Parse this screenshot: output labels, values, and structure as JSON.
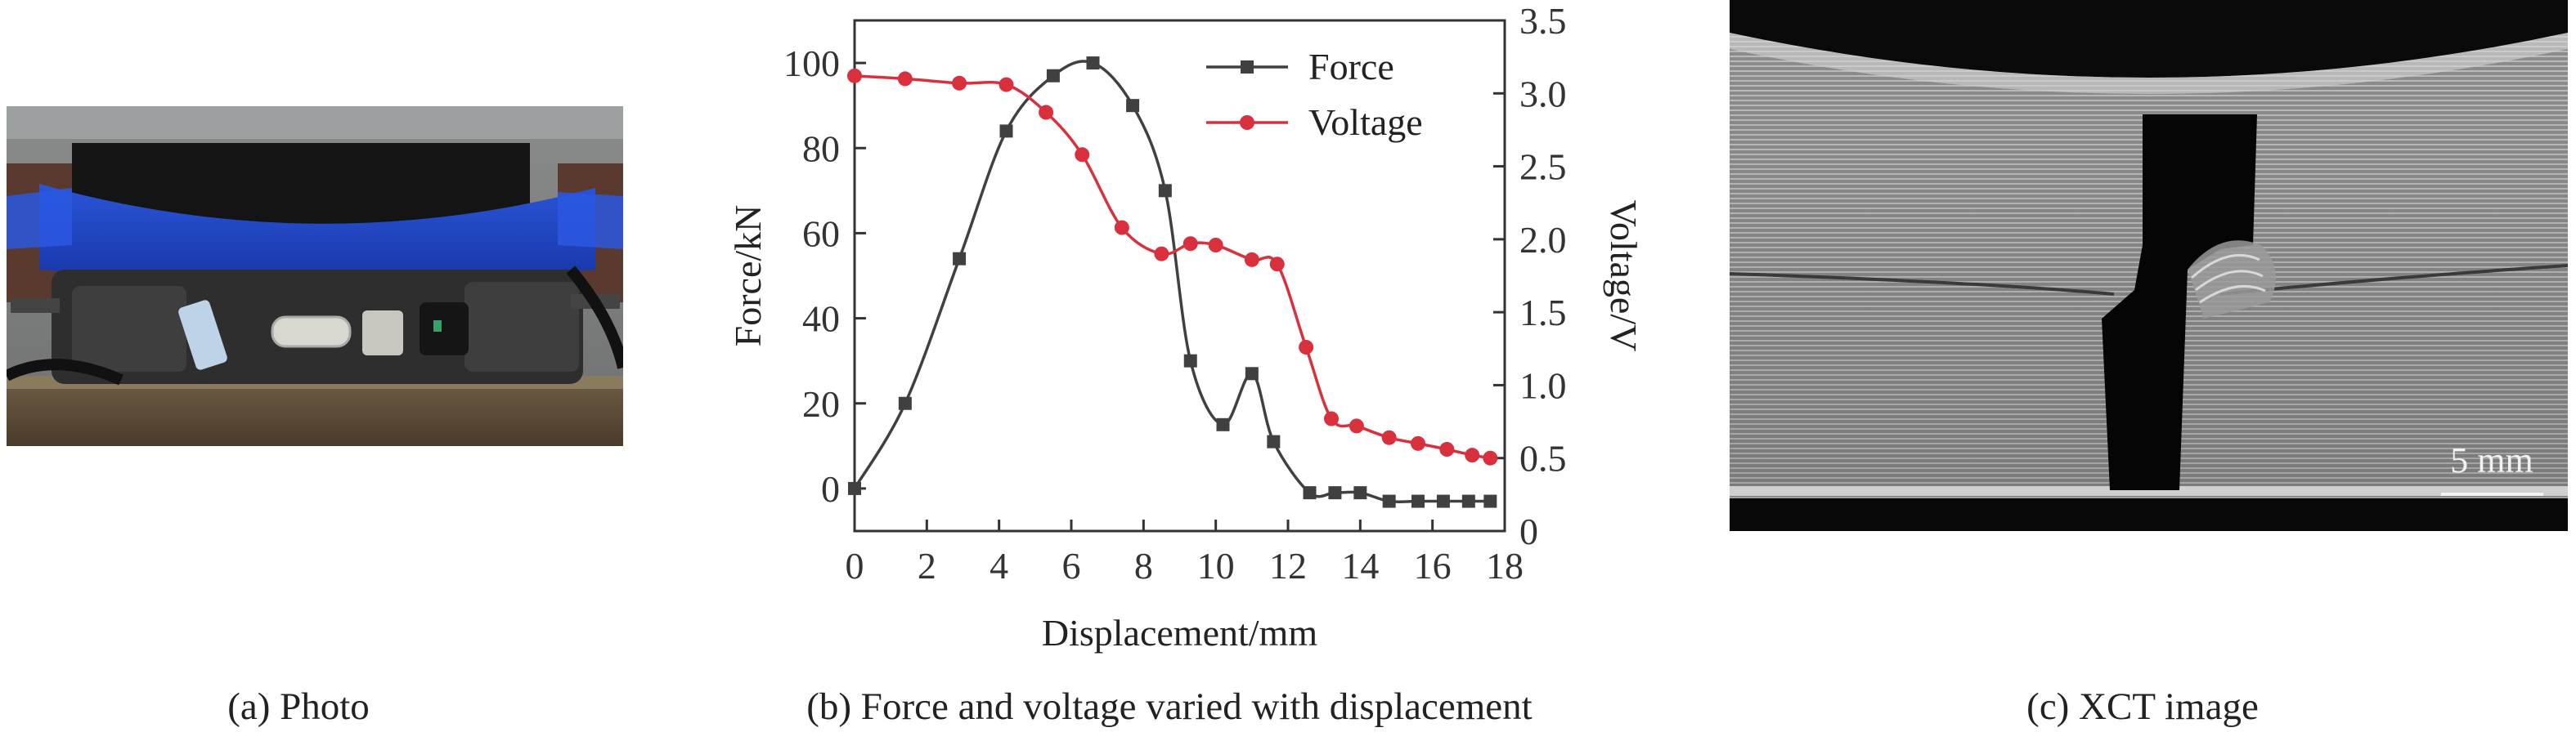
{
  "panels": {
    "a": {
      "caption": "(a) Photo"
    },
    "b": {
      "caption": "(b) Force and voltage varied with displacement"
    },
    "c": {
      "caption": "(c) XCT image",
      "scale_bar_label": "5 mm"
    }
  },
  "chart_data": {
    "type": "line",
    "xlabel": "Displacement/mm",
    "ylabel_left": "Force/kN",
    "ylabel_right": "Voltage/V",
    "xlim": [
      0,
      18
    ],
    "ylim_left": [
      -10,
      110
    ],
    "ylim_right": [
      0,
      3.5
    ],
    "x_ticks": [
      0,
      2,
      4,
      6,
      8,
      10,
      12,
      14,
      16,
      18
    ],
    "y_left_ticks": [
      0,
      20,
      40,
      60,
      80,
      100
    ],
    "y_right_ticks": [
      0,
      0.5,
      1.0,
      1.5,
      2.0,
      2.5,
      3.0,
      3.5
    ],
    "y_right_tick_labels": [
      "0",
      "0.5",
      "1.0",
      "1.5",
      "2.0",
      "2.5",
      "3.0",
      "3.5"
    ],
    "legend_position": "top-right",
    "grid": false,
    "series": [
      {
        "name": "Force",
        "axis": "left",
        "color": "#404040",
        "marker": "square",
        "x": [
          0,
          1.4,
          2.9,
          4.2,
          5.5,
          6.6,
          7.7,
          8.6,
          9.3,
          10.2,
          11.0,
          11.6,
          12.6,
          13.3,
          14.0,
          14.8,
          15.6,
          16.3,
          17.0,
          17.6
        ],
        "y": [
          0,
          20,
          54,
          84,
          97,
          100,
          90,
          70,
          30,
          15,
          27,
          11,
          -1,
          -1,
          -1,
          -3,
          -3,
          -3,
          -3,
          -3
        ]
      },
      {
        "name": "Voltage",
        "axis": "right",
        "color": "#d9303e",
        "marker": "circle",
        "x": [
          0,
          1.4,
          2.9,
          4.2,
          5.3,
          6.3,
          7.4,
          8.5,
          9.3,
          10.0,
          11.0,
          11.7,
          12.5,
          13.2,
          13.9,
          14.8,
          15.6,
          16.4,
          17.1,
          17.6
        ],
        "y": [
          3.12,
          3.1,
          3.07,
          3.06,
          2.87,
          2.58,
          2.08,
          1.9,
          1.97,
          1.96,
          1.86,
          1.83,
          1.26,
          0.77,
          0.72,
          0.64,
          0.6,
          0.56,
          0.52,
          0.5
        ]
      }
    ]
  }
}
